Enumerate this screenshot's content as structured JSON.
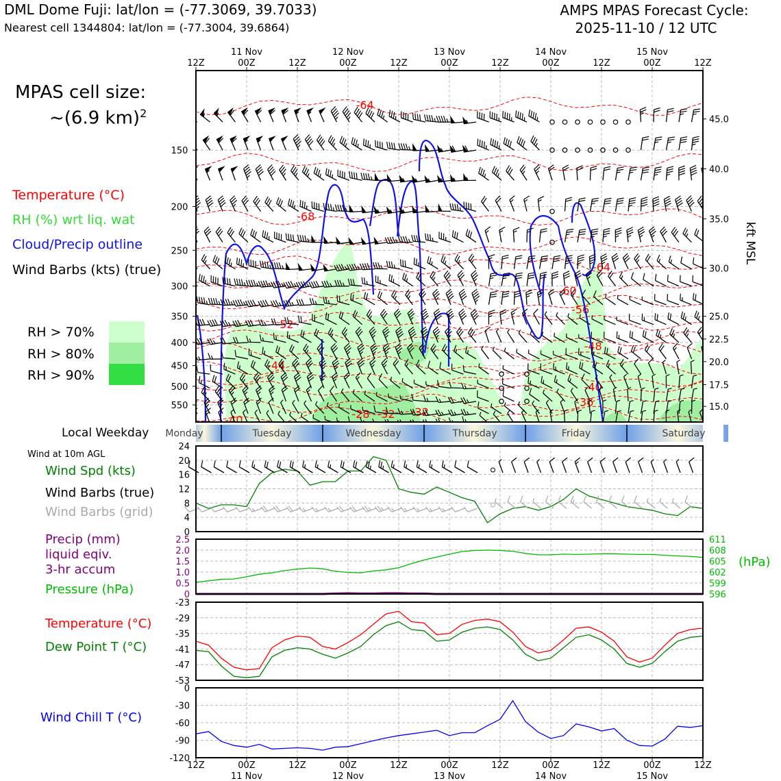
{
  "header": {
    "station_title": "DML Dome Fuji: lat/lon = (-77.3069, 39.7033)",
    "nearest_cell": "Nearest cell 1344804: lat/lon = (-77.3004, 39.6864)",
    "forecast_title": "AMPS MPAS Forecast Cycle:",
    "forecast_cycle": "2025-11-10 / 12 UTC"
  },
  "left_legend": {
    "cell_size_title": "MPAS cell size:",
    "cell_size_value": "~(6.9 km)",
    "cell_size_exp": "2",
    "temperature": "Temperature (°C)",
    "rh": "RH (%) wrt liq. wat",
    "cloud": "Cloud/Precip outline",
    "wind": "Wind Barbs (kts) (true)",
    "rh70": "RH > 70%",
    "rh80": "RH > 80%",
    "rh90": "RH > 90%",
    "local_weekday": "Local Weekday",
    "wind_10m": "Wind at 10m AGL",
    "wind_spd": "Wind Spd (kts)",
    "wind_barbs_true": "Wind Barbs (true)",
    "wind_barbs_grid": "Wind Barbs (grid)",
    "precip_1": "Precip (mm)",
    "precip_2": "liquid eqiv.",
    "precip_3": "3-hr accum",
    "pressure": "Pressure (hPa)",
    "temp2": "Temperature (°C)",
    "dewpoint": "Dew Point T (°C)",
    "windchill": "Wind Chill T (°C)"
  },
  "colors": {
    "temperature": "#ff0000",
    "rh_label": "#33dd33",
    "cloud": "#1010ee",
    "wind_spd": "#008000",
    "grid_barb": "#aaaaaa",
    "precip": "#800080",
    "pressure": "#00bb00",
    "dewpoint": "#008000",
    "windchill": "#0000ff",
    "rh70": "#ccffcc",
    "rh80": "#a0eea0",
    "rh90": "#33dd44"
  },
  "time_axis": {
    "tick_labels": [
      "12Z",
      "00Z",
      "12Z",
      "00Z",
      "12Z",
      "00Z",
      "12Z",
      "00Z",
      "12Z",
      "00Z",
      "12Z"
    ],
    "date_labels": [
      "11 Nov",
      "12 Nov",
      "13 Nov",
      "14 Nov",
      "15 Nov"
    ],
    "weekdays": [
      "Monday",
      "Tuesday",
      "Wednesday",
      "Thursday",
      "Friday",
      "Saturday"
    ],
    "range_hours": [
      0,
      120
    ]
  },
  "chart_data": [
    {
      "type": "line",
      "panel": "cross-section",
      "y_axis_left": {
        "unit": "hPa",
        "tick_labels": [
          "150",
          "200",
          "250",
          "300",
          "350",
          "400",
          "450",
          "500",
          "550"
        ],
        "ylim": [
          600,
          100
        ]
      },
      "y_axis_right": {
        "label": "kft MSL",
        "tick_labels": [
          "45.0",
          "40.0",
          "35.0",
          "30.0",
          "25.0",
          "22.5",
          "20.0",
          "17.5",
          "15.0"
        ],
        "tick_pressures": [
          128,
          165,
          213,
          274,
          350,
          393,
          441,
          496,
          554
        ]
      },
      "temperature_labels": [
        {
          "text": "-64",
          "hour": 40,
          "hpa": 119
        },
        {
          "text": "-68",
          "hour": 26,
          "hpa": 210
        },
        {
          "text": "-64",
          "hour": 96,
          "hpa": 272
        },
        {
          "text": "-60",
          "hour": 88,
          "hpa": 307
        },
        {
          "text": "-56",
          "hour": 91,
          "hpa": 338
        },
        {
          "text": "-52",
          "hour": 21,
          "hpa": 364
        },
        {
          "text": "-48",
          "hour": 94,
          "hpa": 407
        },
        {
          "text": "-44",
          "hour": 19,
          "hpa": 449
        },
        {
          "text": "-40",
          "hour": 94,
          "hpa": 501
        },
        {
          "text": "-36",
          "hour": 92,
          "hpa": 541
        },
        {
          "text": "-32",
          "hour": 53,
          "hpa": 569
        },
        {
          "text": "-32",
          "hour": 45,
          "hpa": 575
        },
        {
          "text": "-28",
          "hour": 39,
          "hpa": 575
        },
        {
          "text": "-40",
          "hour": 9,
          "hpa": 593
        }
      ],
      "grid": true
    },
    {
      "type": "line",
      "panel": "surface-wind",
      "series": [
        {
          "name": "Wind Spd (kts)",
          "x": [
            0,
            3,
            6,
            9,
            12,
            15,
            18,
            21,
            24,
            27,
            30,
            33,
            36,
            39,
            42,
            45,
            48,
            51,
            54,
            57,
            60,
            63,
            66,
            69,
            72,
            75,
            78,
            81,
            84,
            87,
            90,
            93,
            96,
            99,
            102,
            105,
            108,
            111,
            114,
            117,
            120
          ],
          "values": [
            8,
            6.5,
            7.5,
            7.5,
            7,
            13.5,
            16.5,
            17.5,
            17,
            13,
            14,
            14,
            17,
            17,
            21,
            20,
            12,
            11,
            10.5,
            12.5,
            11,
            9.5,
            8.5,
            2.5,
            5,
            6.5,
            7,
            6,
            7,
            9,
            12,
            10,
            9,
            8,
            7,
            6.5,
            6,
            5,
            4.5,
            7,
            6.5
          ]
        }
      ],
      "ylim": [
        0,
        24
      ],
      "y_tick_labels": [
        "0",
        "4",
        "8",
        "12",
        "16",
        "20",
        "24"
      ],
      "grid": true
    },
    {
      "type": "line",
      "panel": "precip-pressure",
      "series": [
        {
          "name": "Precip (mm)",
          "x": [
            0,
            3,
            6,
            9,
            12,
            15,
            18,
            21,
            24,
            27,
            30,
            33,
            36,
            39,
            42,
            45,
            48,
            51,
            54,
            57,
            60,
            63,
            66,
            69,
            72,
            75,
            78,
            81,
            84,
            87,
            90,
            93,
            96,
            99,
            102,
            105,
            108,
            111,
            114,
            117,
            120
          ],
          "values": [
            0,
            0,
            0,
            0,
            0,
            0,
            0,
            0,
            0,
            0,
            0,
            0.02,
            0.03,
            0.02,
            0.02,
            0.03,
            0.03,
            0.02,
            0.02,
            0,
            0,
            0,
            0,
            0,
            0,
            0,
            0,
            0,
            0,
            0,
            0,
            0,
            0,
            0,
            0,
            0,
            0,
            0,
            0,
            0,
            0
          ]
        },
        {
          "name": "Pressure (hPa)",
          "x": [
            0,
            3,
            6,
            9,
            12,
            15,
            18,
            21,
            24,
            27,
            30,
            33,
            36,
            39,
            42,
            45,
            48,
            51,
            54,
            57,
            60,
            63,
            66,
            69,
            72,
            75,
            78,
            81,
            84,
            87,
            90,
            93,
            96,
            99,
            102,
            105,
            108,
            111,
            114,
            117,
            120
          ],
          "values": [
            599.2,
            599.6,
            600,
            600.1,
            600.7,
            601.4,
            601.8,
            602.4,
            602.8,
            603.1,
            602.9,
            602.2,
            601.9,
            601.8,
            602.3,
            602.6,
            603.2,
            604.3,
            605.3,
            606.1,
            606.9,
            607.6,
            607.9,
            608,
            607.9,
            607.7,
            607.1,
            606.7,
            606.7,
            606.9,
            606.8,
            606.9,
            607,
            607,
            606.9,
            606.8,
            606.8,
            606.6,
            606.4,
            606.3,
            606
          ]
        }
      ],
      "y_left": {
        "ylim": [
          0,
          2.5
        ],
        "tick_labels": [
          "0",
          "0.5",
          "1.0",
          "1.5",
          "2.0",
          "2.5"
        ]
      },
      "y_right": {
        "label": "(hPa)",
        "ylim": [
          596,
          611
        ],
        "tick_labels": [
          "596",
          "599",
          "602",
          "605",
          "608",
          "611"
        ]
      },
      "grid": true
    },
    {
      "type": "line",
      "panel": "temperature",
      "series": [
        {
          "name": "Temperature (°C)",
          "x": [
            0,
            3,
            6,
            9,
            12,
            15,
            18,
            21,
            24,
            27,
            30,
            33,
            36,
            39,
            42,
            45,
            48,
            51,
            54,
            57,
            60,
            63,
            66,
            69,
            72,
            75,
            78,
            81,
            84,
            87,
            90,
            93,
            96,
            99,
            102,
            105,
            108,
            111,
            114,
            117,
            120
          ],
          "values": [
            -38,
            -39.5,
            -44.5,
            -48,
            -49,
            -48.5,
            -40.5,
            -37.5,
            -36,
            -36.5,
            -40,
            -41,
            -38.5,
            -35.5,
            -31.5,
            -27.5,
            -26.5,
            -30.5,
            -31,
            -35.5,
            -35,
            -31.5,
            -30,
            -29.5,
            -30.5,
            -34.5,
            -40,
            -42.5,
            -41.5,
            -37.5,
            -33,
            -32.5,
            -34.5,
            -38,
            -44,
            -46,
            -44.5,
            -39.5,
            -35,
            -33.5,
            -33
          ]
        },
        {
          "name": "Dew Point T (°C)",
          "x": [
            0,
            3,
            6,
            9,
            12,
            15,
            18,
            21,
            24,
            27,
            30,
            33,
            36,
            39,
            42,
            45,
            48,
            51,
            54,
            57,
            60,
            63,
            66,
            69,
            72,
            75,
            78,
            81,
            84,
            87,
            90,
            93,
            96,
            99,
            102,
            105,
            108,
            111,
            114,
            117,
            120
          ],
          "values": [
            -41.5,
            -42,
            -47.5,
            -51.5,
            -52,
            -51.5,
            -44,
            -41.5,
            -40.5,
            -41,
            -43,
            -44.5,
            -42.5,
            -40,
            -35.5,
            -32,
            -30.5,
            -33.5,
            -34,
            -38,
            -37.5,
            -34.5,
            -33,
            -32.5,
            -33.5,
            -37.5,
            -43,
            -45.5,
            -44.5,
            -40.5,
            -36.5,
            -35.5,
            -37.5,
            -41,
            -46.5,
            -48,
            -46.5,
            -42,
            -38,
            -36.5,
            -36
          ]
        }
      ],
      "ylim": [
        -53,
        -23
      ],
      "y_tick_labels": [
        "-53",
        "-47",
        "-41",
        "-35",
        "-29",
        "-23"
      ],
      "grid": true
    },
    {
      "type": "line",
      "panel": "wind-chill",
      "series": [
        {
          "name": "Wind Chill T (°C)",
          "x": [
            0,
            3,
            6,
            9,
            12,
            15,
            18,
            21,
            24,
            27,
            30,
            33,
            36,
            39,
            42,
            45,
            48,
            51,
            54,
            57,
            60,
            63,
            66,
            69,
            72,
            75,
            78,
            81,
            84,
            87,
            90,
            93,
            96,
            99,
            102,
            105,
            108,
            111,
            114,
            117,
            120
          ],
          "values": [
            -79,
            -75,
            -92,
            -99,
            -102,
            -97,
            -105,
            -104,
            -103,
            -104,
            -107,
            -102,
            -101,
            -96,
            -91,
            -86,
            -82,
            -79,
            -76,
            -73,
            -82,
            -77,
            -77,
            -65,
            -54,
            -22,
            -58,
            -76,
            -87,
            -82,
            -62,
            -67,
            -74,
            -70,
            -90,
            -99,
            -100,
            -88,
            -66,
            -68,
            -65
          ]
        }
      ],
      "ylim": [
        -120,
        0
      ],
      "y_tick_labels": [
        "-120",
        "-90",
        "-60",
        "-30",
        "0"
      ],
      "grid": true
    }
  ]
}
